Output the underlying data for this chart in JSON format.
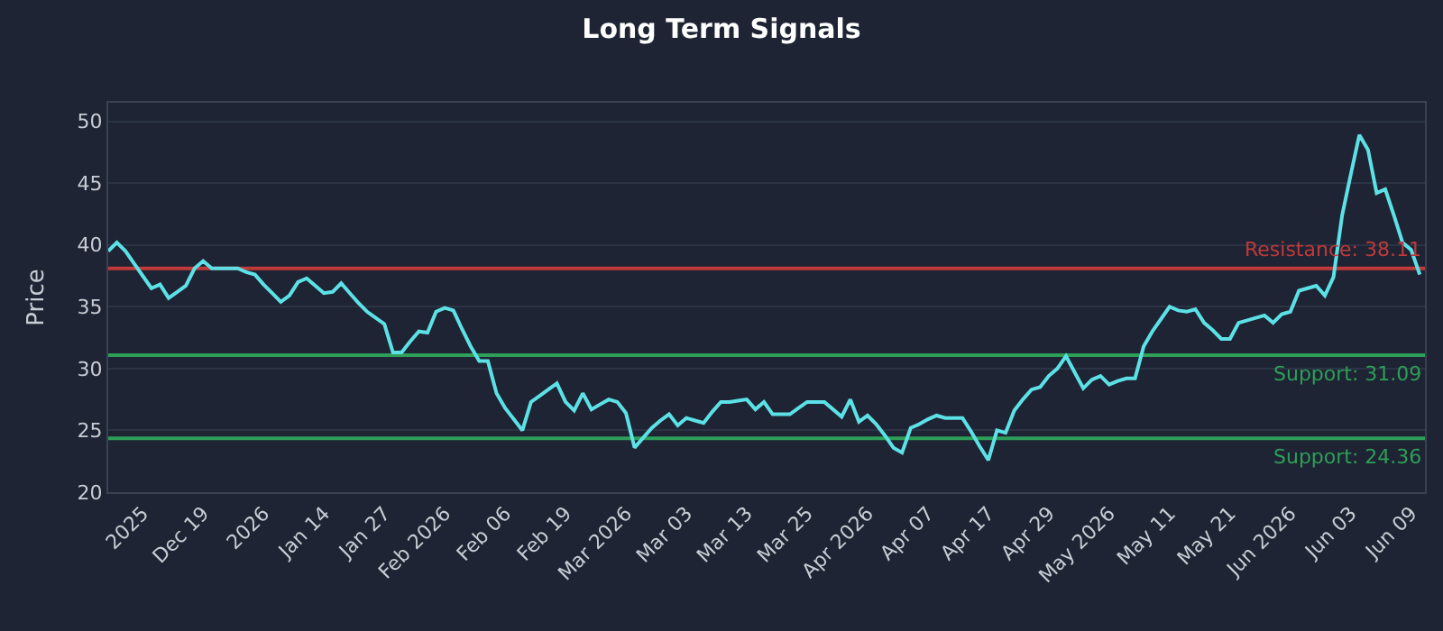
{
  "chart_data": {
    "type": "line",
    "title": "Long Term Signals",
    "ylabel": "Price",
    "categories": [
      null,
      null,
      null,
      null,
      "2025",
      null,
      null,
      null,
      null,
      null,
      null,
      "Dec 19",
      null,
      null,
      null,
      null,
      null,
      null,
      "2026",
      null,
      null,
      null,
      null,
      null,
      null,
      "Jan 14",
      null,
      null,
      null,
      null,
      null,
      null,
      "Jan 27",
      null,
      null,
      null,
      null,
      null,
      null,
      "Feb 2026",
      null,
      null,
      null,
      null,
      null,
      null,
      "Feb 06",
      null,
      null,
      null,
      null,
      null,
      null,
      "Feb 19",
      null,
      null,
      null,
      null,
      null,
      null,
      "Mar 2026",
      null,
      null,
      null,
      null,
      null,
      null,
      "Mar 03",
      null,
      null,
      null,
      null,
      null,
      null,
      "Mar 13",
      null,
      null,
      null,
      null,
      null,
      null,
      "Mar 25",
      null,
      null,
      null,
      null,
      null,
      null,
      "Apr 2026",
      null,
      null,
      null,
      null,
      null,
      null,
      "Apr 07",
      null,
      null,
      null,
      null,
      null,
      null,
      "Apr 17",
      null,
      null,
      null,
      null,
      null,
      null,
      "Apr 29",
      null,
      null,
      null,
      null,
      null,
      null,
      "May 2026",
      null,
      null,
      null,
      null,
      null,
      null,
      "May 11",
      null,
      null,
      null,
      null,
      null,
      null,
      "May 21",
      null,
      null,
      null,
      null,
      null,
      null,
      "Jun 2026",
      null,
      null,
      null,
      null,
      null,
      null,
      "Jun 03",
      null,
      null,
      null,
      null,
      null,
      null,
      "Jun 09",
      null
    ],
    "series": [
      {
        "color": "#5ce1e6",
        "values": [
          39.5,
          40.2,
          39.5,
          38.5,
          37.5,
          36.5,
          36.8,
          35.7,
          36.2,
          36.7,
          38.1,
          38.7,
          38.1,
          38.1,
          38.1,
          38.1,
          37.8,
          37.6,
          36.8,
          36.1,
          35.4,
          35.9,
          37.0,
          37.3,
          36.7,
          36.1,
          36.2,
          36.9,
          36.1,
          35.3,
          34.6,
          34.1,
          33.6,
          31.3,
          31.3,
          32.2,
          33.0,
          32.9,
          34.6,
          34.9,
          34.7,
          33.2,
          31.8,
          30.6,
          30.6,
          28.0,
          26.8,
          25.9,
          25.0,
          27.3,
          27.8,
          28.3,
          28.8,
          27.3,
          26.6,
          28.0,
          26.7,
          27.1,
          27.5,
          27.3,
          26.4,
          23.6,
          24.4,
          25.2,
          25.8,
          26.3,
          25.4,
          26.0,
          25.8,
          25.6,
          26.5,
          27.3,
          27.3,
          27.4,
          27.5,
          26.7,
          27.3,
          26.3,
          26.3,
          26.3,
          26.8,
          27.3,
          27.3,
          27.3,
          26.7,
          26.1,
          27.5,
          25.7,
          26.2,
          25.5,
          24.6,
          23.6,
          23.2,
          25.2,
          25.5,
          25.9,
          26.2,
          26.0,
          26.0,
          26.0,
          24.9,
          23.7,
          22.6,
          25.0,
          24.8,
          26.6,
          27.5,
          28.3,
          28.5,
          29.4,
          30.0,
          31.0,
          29.7,
          28.4,
          29.1,
          29.4,
          28.7,
          29.0,
          29.2,
          29.2,
          31.8,
          33.0,
          34.0,
          35.0,
          34.7,
          34.6,
          34.8,
          33.7,
          33.1,
          32.4,
          32.4,
          33.7,
          33.9,
          34.1,
          34.3,
          33.7,
          34.4,
          34.6,
          36.3,
          36.5,
          36.7,
          35.9,
          37.4,
          42.4,
          45.7,
          48.9,
          47.7,
          44.2,
          44.5,
          42.4,
          40.2,
          39.6,
          37.6
        ]
      }
    ],
    "ylim": [
      20,
      51.5
    ],
    "yticks": [
      20,
      25,
      30,
      35,
      40,
      45,
      50
    ],
    "ref_lines": [
      {
        "axis": "y",
        "value": 38.11,
        "label": "Resistance: 38.11",
        "color": "#c0393b"
      },
      {
        "axis": "y",
        "value": 31.09,
        "label": "Support: 31.09",
        "color": "#2e9e58"
      },
      {
        "axis": "y",
        "value": 24.36,
        "label": "Support: 24.36",
        "color": "#2e9e58"
      }
    ],
    "grid": "y",
    "marker": "none",
    "line_style": "solid"
  }
}
